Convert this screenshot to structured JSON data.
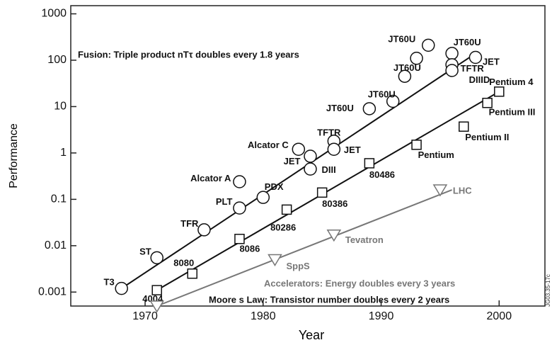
{
  "chart_data": {
    "type": "scatter",
    "ylog": true,
    "xlabel": "Year",
    "ylabel": "Performance",
    "xlim": [
      1964,
      2004
    ],
    "ylim": [
      0.0005,
      1500
    ],
    "xticks": [
      1970,
      1980,
      1990,
      2000
    ],
    "yticks": [
      0.001,
      0.01,
      0.1,
      1,
      10,
      100,
      1000
    ],
    "annotations": [
      "Fusion: Triple product nTτ doubles every 1.8 years",
      "Accelerators: Energy doubles every 3 years",
      "Moore s Law: Transistor number doubles every 2 years"
    ],
    "figure_id": "JG03.35-17c",
    "series": [
      {
        "color": "#111111",
        "marker": "circle",
        "label_color": "#111111",
        "x": [
          1968,
          1971,
          1975,
          1978,
          1978,
          1980,
          1983,
          1984,
          1984,
          1986,
          1986,
          1989,
          1991,
          1992,
          1993,
          1994,
          1996,
          1996,
          1996,
          1998
        ],
        "values": [
          0.0012,
          0.0055,
          0.022,
          0.065,
          0.24,
          0.11,
          1.2,
          0.85,
          0.45,
          1.8,
          1.2,
          9,
          13,
          45,
          110,
          210,
          140,
          80,
          60,
          115
        ],
        "labels": [
          "T3",
          "ST",
          "TFR",
          "PLT",
          "Alcator A",
          "PDX",
          "Alcator C",
          "JET",
          "DIII",
          "TFTR",
          "JET",
          "JT60U",
          "JT60U",
          "JT60U",
          null,
          "JT60U",
          "JT60U",
          "TFTR",
          "DIIID",
          "JET"
        ],
        "trend_x": [
          1968,
          1998
        ],
        "trend_y": [
          0.0012,
          140
        ]
      },
      {
        "color": "#111111",
        "marker": "square",
        "label_color": "#111111",
        "x": [
          1971,
          1974,
          1978,
          1982,
          1985,
          1989,
          1993,
          1997,
          1999,
          2000
        ],
        "values": [
          0.0011,
          0.0025,
          0.014,
          0.06,
          0.14,
          0.6,
          1.5,
          3.7,
          12,
          21
        ],
        "labels": [
          "4004",
          "8080",
          "8086",
          "80286",
          "80386",
          "80486",
          "Pentium",
          "Pentium II",
          "Pentium III",
          "Pentium 4"
        ],
        "trend_x": [
          1971,
          2000
        ],
        "trend_y": [
          0.0011,
          21
        ]
      },
      {
        "color": "#777777",
        "marker": "triangle",
        "label_color": "#777777",
        "x": [
          1971,
          1981,
          1986,
          1995
        ],
        "values": [
          0.0005,
          0.005,
          0.017,
          0.16
        ],
        "labels": [
          null,
          "SppS",
          "Tevatron",
          "LHC"
        ],
        "trend_x": [
          1971,
          1996
        ],
        "trend_y": [
          0.0005,
          0.16
        ]
      }
    ]
  }
}
